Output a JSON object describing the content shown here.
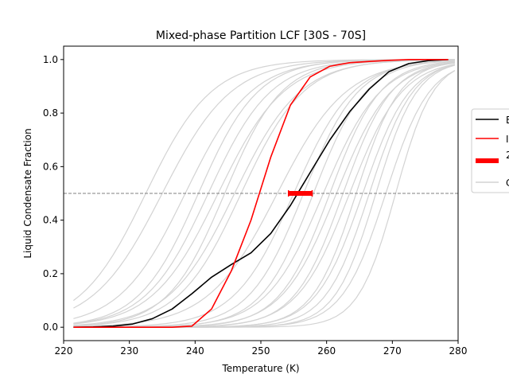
{
  "chart_data": {
    "type": "line",
    "title": "Mixed-phase Partition LCF [30S - 70S]",
    "xlabel": "Temperature (K)",
    "ylabel": "Liquid Condensate Fraction",
    "xlim": [
      220,
      280
    ],
    "ylim": [
      -0.05,
      1.05
    ],
    "xticks": [
      "220",
      "230",
      "240",
      "250",
      "260",
      "270",
      "280"
    ],
    "yticks": [
      "0.0",
      "0.2",
      "0.4",
      "0.6",
      "0.8",
      "1.0"
    ],
    "reference_line": {
      "y": 0.5,
      "style": "dashed",
      "color": "#808080"
    },
    "legend": {
      "placement": "center-right",
      "entries": [
        "E",
        "I",
        "2",
        "C"
      ]
    },
    "colors": {
      "black": "#000000",
      "red": "#ff0000",
      "gray": "#d3d3d3",
      "dashed": "#808080"
    },
    "series": [
      {
        "name": "E",
        "color": "#000000",
        "style": "solid",
        "x": [
          221.5,
          224.5,
          227.5,
          230.5,
          233.5,
          236.5,
          239.5,
          242.5,
          245.5,
          248.5,
          251.5,
          254.5,
          257.5,
          260.5,
          263.5,
          266.5,
          269.5,
          272.5,
          275.5,
          278.5
        ],
        "y": [
          0.0,
          0.001,
          0.004,
          0.012,
          0.032,
          0.068,
          0.125,
          0.187,
          0.234,
          0.278,
          0.35,
          0.455,
          0.578,
          0.7,
          0.805,
          0.89,
          0.955,
          0.985,
          0.996,
          1.0
        ]
      },
      {
        "name": "I",
        "color": "#ff0000",
        "style": "solid",
        "x": [
          221.5,
          224.5,
          227.5,
          230.5,
          233.5,
          236.5,
          239.5,
          242.5,
          245.5,
          248.5,
          251.5,
          254.5,
          257.5,
          260.5,
          263.5,
          266.5,
          269.5,
          272.5,
          275.5,
          278.5
        ],
        "y": [
          0.0,
          0.0,
          0.0,
          0.0,
          0.0,
          0.0,
          0.004,
          0.068,
          0.21,
          0.4,
          0.635,
          0.83,
          0.935,
          0.975,
          0.988,
          0.993,
          0.997,
          1.0,
          1.0,
          1.0
        ]
      },
      {
        "name": "2",
        "color": "#ff0000",
        "style": "errorbar",
        "x": [
          256
        ],
        "y": [
          0.5
        ],
        "xerr": [
          1.8
        ]
      },
      {
        "name": "C",
        "color": "#d3d3d3",
        "style": "solid",
        "ensemble": true,
        "members": [
          {
            "x0": 232.5,
            "k": 0.2
          },
          {
            "x0": 235,
            "k": 0.19
          },
          {
            "x0": 238.5,
            "k": 0.2
          },
          {
            "x0": 240.5,
            "k": 0.22
          },
          {
            "x0": 242,
            "k": 0.21
          },
          {
            "x0": 243.5,
            "k": 0.2
          },
          {
            "x0": 244.5,
            "k": 0.23
          },
          {
            "x0": 246,
            "k": 0.2
          },
          {
            "x0": 247,
            "k": 0.21
          },
          {
            "x0": 252.5,
            "k": 0.19
          },
          {
            "x0": 255,
            "k": 0.22
          },
          {
            "x0": 256.5,
            "k": 0.24
          },
          {
            "x0": 258,
            "k": 0.25
          },
          {
            "x0": 259.5,
            "k": 0.23
          },
          {
            "x0": 260.5,
            "k": 0.26
          },
          {
            "x0": 261.5,
            "k": 0.24
          },
          {
            "x0": 262.5,
            "k": 0.27
          },
          {
            "x0": 263.5,
            "k": 0.25
          },
          {
            "x0": 264.5,
            "k": 0.3
          },
          {
            "x0": 265.5,
            "k": 0.28
          },
          {
            "x0": 266.5,
            "k": 0.3
          },
          {
            "x0": 267.5,
            "k": 0.32
          },
          {
            "x0": 269,
            "k": 0.3
          },
          {
            "x0": 270.5,
            "k": 0.35
          }
        ]
      }
    ]
  }
}
